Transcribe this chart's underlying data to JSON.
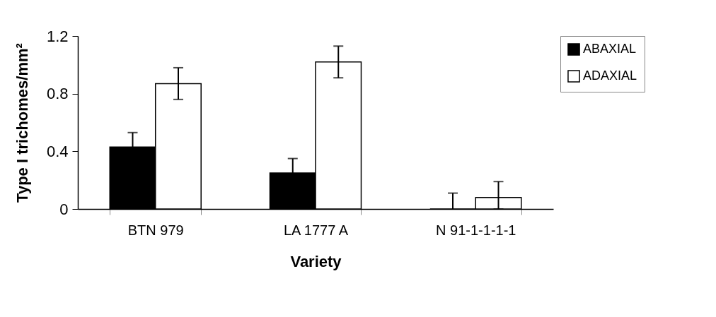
{
  "chart_data": {
    "type": "bar",
    "xlabel": "Variety",
    "ylabel": "Type I trichomes/mm²",
    "categories": [
      "BTN 979",
      "LA 1777 A",
      "N 91-1-1-1-1"
    ],
    "series": [
      {
        "name": "ABAXIAL",
        "color": "#000000",
        "values": [
          0.43,
          0.25,
          0
        ],
        "errors": [
          0.1,
          0.1,
          [
            0,
            0.11
          ]
        ]
      },
      {
        "name": "ADAXIAL",
        "color": "#ffffff",
        "values": [
          0.87,
          1.02,
          0.08
        ],
        "errors": [
          0.11,
          0.11,
          [
            0,
            0.19
          ]
        ]
      }
    ],
    "ylim": [
      0,
      1.2
    ],
    "yticks": [
      0,
      0.4,
      0.8,
      1.2
    ],
    "grid": false,
    "legend": "right"
  }
}
